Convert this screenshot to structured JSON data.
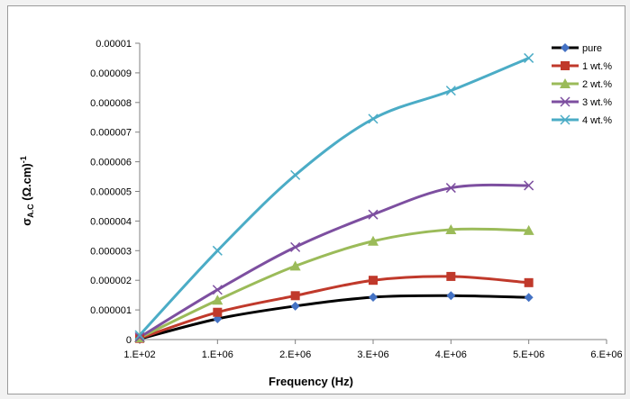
{
  "chart_data": {
    "type": "line",
    "title": "",
    "xlabel": "Frequency (Hz)",
    "ylabel_main": "σ",
    "ylabel_sub": "A.C",
    "ylabel_rest": " (Ω.cm)",
    "ylabel_sup": "-1",
    "xlim": [
      100,
      6000000
    ],
    "ylim": [
      0,
      1e-05
    ],
    "x_ticks": [
      {
        "value": 100,
        "label": "1.E+02"
      },
      {
        "value": 1000000,
        "label": "1.E+06"
      },
      {
        "value": 2000000,
        "label": "2.E+06"
      },
      {
        "value": 3000000,
        "label": "3.E+06"
      },
      {
        "value": 4000000,
        "label": "4.E+06"
      },
      {
        "value": 5000000,
        "label": "5.E+06"
      },
      {
        "value": 6000000,
        "label": "6.E+06"
      }
    ],
    "y_ticks": [
      {
        "value": 0,
        "label": "0"
      },
      {
        "value": 1e-06,
        "label": "0.000001"
      },
      {
        "value": 2e-06,
        "label": "0.000002"
      },
      {
        "value": 3e-06,
        "label": "0.000003"
      },
      {
        "value": 4e-06,
        "label": "0.000004"
      },
      {
        "value": 5e-06,
        "label": "0.000005"
      },
      {
        "value": 6e-06,
        "label": "0.000006"
      },
      {
        "value": 7e-06,
        "label": "0.000007"
      },
      {
        "value": 8e-06,
        "label": "0.000008"
      },
      {
        "value": 9e-06,
        "label": "0.000009"
      },
      {
        "value": 1e-05,
        "label": "0.00001"
      }
    ],
    "grid": false,
    "legend_position": "right",
    "x": [
      100,
      1000000,
      2000000,
      3000000,
      4000000,
      5000000
    ],
    "series": [
      {
        "name": "pure",
        "color": "#000000",
        "marker": "diamond",
        "marker_color": "#4472c4",
        "values": [
          2e-08,
          7e-07,
          1.13e-06,
          1.43e-06,
          1.48e-06,
          1.42e-06
        ]
      },
      {
        "name": "1 wt.%",
        "color": "#c0392b",
        "marker": "square",
        "marker_color": "#c0392b",
        "values": [
          4e-08,
          9.2e-07,
          1.48e-06,
          2e-06,
          2.13e-06,
          1.92e-06
        ]
      },
      {
        "name": "2 wt.%",
        "color": "#9bbb59",
        "marker": "triangle",
        "marker_color": "#9bbb59",
        "values": [
          6e-08,
          1.33e-06,
          2.48e-06,
          3.32e-06,
          3.71e-06,
          3.68e-06
        ]
      },
      {
        "name": "3 wt.%",
        "color": "#7d4fa0",
        "marker": "x",
        "marker_color": "#7d4fa0",
        "values": [
          8e-08,
          1.68e-06,
          3.12e-06,
          4.22e-06,
          5.12e-06,
          5.2e-06
        ]
      },
      {
        "name": "4 wt.%",
        "color": "#4bacc6",
        "marker": "x",
        "marker_color": "#4bacc6",
        "values": [
          1.5e-07,
          3e-06,
          5.55e-06,
          7.45e-06,
          8.4e-06,
          9.5e-06
        ]
      }
    ]
  }
}
